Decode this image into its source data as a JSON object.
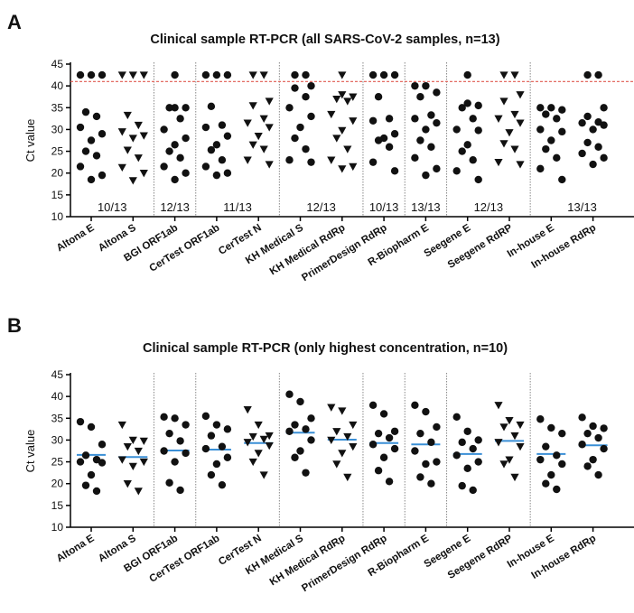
{
  "chart_data": [
    {
      "panel": "A",
      "type": "scatter",
      "title": "Clinical sample RT-PCR (all SARS-CoV-2 samples, n=13)",
      "ylabel": "Ct value",
      "ylim": [
        10,
        45
      ],
      "yticks": [
        10,
        15,
        20,
        25,
        30,
        35,
        40,
        45
      ],
      "cutoff": 41,
      "categories": [
        "Altona E",
        "Altona S",
        "BGI ORF1ab",
        "CerTest ORF1ab",
        "CerTest N",
        "KH Medical S",
        "KH Medical RdRp",
        "PrimerDesign RdRp",
        "R-Biopharm E",
        "Seegene E",
        "Seegene RdRP",
        "In-house E",
        "In-house RdRp"
      ],
      "group_labels": [
        "10/13",
        "12/13",
        "11/13",
        "12/13",
        "10/13",
        "13/13",
        "12/13",
        "13/13"
      ],
      "values": [
        [
          42.5,
          42.5,
          42.5,
          34,
          33,
          30.5,
          29,
          27.5,
          25,
          24,
          21.5,
          19.5,
          18.5
        ],
        [
          42.5,
          42.5,
          42.5,
          33.3,
          31,
          29.5,
          28.6,
          28,
          25.3,
          23.5,
          21.3,
          20,
          18.3
        ],
        [
          42.5,
          35,
          35,
          35,
          32.5,
          30,
          28,
          26.5,
          25,
          23.5,
          21.5,
          20,
          18.5
        ],
        [
          42.5,
          42.5,
          42.5,
          35.3,
          31,
          30.5,
          28.5,
          26.5,
          25.3,
          23,
          21.5,
          20,
          19.5
        ],
        [
          42.5,
          42.5,
          36.5,
          35.5,
          32.5,
          31.5,
          30.5,
          28.5,
          26.5,
          25.5,
          23,
          22
        ],
        [
          42.5,
          42.5,
          40,
          39.5,
          37.5,
          35,
          33,
          30.5,
          28,
          25.5,
          23,
          22.5
        ],
        [
          42.5,
          38,
          37.5,
          37,
          36.5,
          33.5,
          32,
          29.8,
          28,
          25.5,
          23,
          21.5,
          21
        ],
        [
          42.5,
          42.5,
          42.5,
          37.5,
          32.5,
          32,
          29,
          28,
          27.5,
          26,
          22.5,
          20.5
        ],
        [
          40,
          40,
          38.5,
          37.5,
          33.3,
          32.5,
          31.5,
          30,
          27.5,
          26,
          23.5,
          21,
          19.5
        ],
        [
          42.5,
          36,
          35.5,
          35,
          32.5,
          30,
          29.8,
          26.5,
          25,
          23,
          20.5,
          18.5
        ],
        [
          42.5,
          42.5,
          38,
          36.5,
          33.5,
          32.5,
          31.5,
          29.3,
          26.8,
          25.5,
          22.5,
          22
        ],
        [
          35,
          35,
          34.5,
          33.5,
          32.5,
          30,
          29.5,
          27.5,
          25.5,
          23.5,
          21,
          18.5
        ],
        [
          42.5,
          42.5,
          35,
          33,
          31.7,
          31.5,
          31,
          30,
          27,
          26,
          24.5,
          23.5,
          22
        ]
      ]
    },
    {
      "panel": "B",
      "type": "scatter",
      "title": "Clinical sample RT-PCR (only highest concentration, n=10)",
      "ylabel": "Ct value",
      "ylim": [
        10,
        45
      ],
      "yticks": [
        10,
        15,
        20,
        25,
        30,
        35,
        40,
        45
      ],
      "categories": [
        "Altona E",
        "Altona S",
        "BGI ORF1ab",
        "CerTest ORF1ab",
        "CerTest N",
        "KH Medical S",
        "KH Medical RdRp",
        "PrimerDesign RdRp",
        "R-Biopharm E",
        "Seegene E",
        "Seegene RdRP",
        "In-house E",
        "In-house RdRp"
      ],
      "means": [
        26.6,
        26.1,
        27.6,
        27.8,
        29.3,
        31.7,
        30.1,
        29.3,
        29.0,
        26.8,
        29.8,
        26.8,
        28.8
      ],
      "values": [
        [
          34.2,
          33,
          29,
          26.5,
          25.5,
          25,
          24.8,
          22,
          19.6,
          18.3
        ],
        [
          33.5,
          30,
          29.8,
          28.5,
          27.5,
          25.5,
          25,
          24,
          20,
          18.3
        ],
        [
          35.3,
          35,
          33.5,
          31.5,
          29.8,
          27.5,
          27,
          25,
          20.2,
          18.5
        ],
        [
          35.5,
          33.5,
          32.5,
          31,
          28.5,
          28,
          26,
          24.5,
          22,
          19.7
        ],
        [
          37,
          33.5,
          31,
          30.8,
          30.2,
          29.5,
          28.7,
          27,
          25,
          22
        ],
        [
          40.5,
          38.8,
          35,
          33.5,
          32.5,
          32,
          30,
          27.5,
          26,
          22.5
        ],
        [
          37.5,
          36.7,
          33.5,
          32,
          30.8,
          30,
          28.5,
          27,
          24.5,
          21.5
        ],
        [
          38,
          36,
          32,
          31.5,
          30.5,
          29,
          28,
          26,
          23,
          20.5
        ],
        [
          38,
          36.5,
          33,
          31.5,
          29.5,
          27.5,
          25,
          24.5,
          21.5,
          20
        ],
        [
          35.3,
          32,
          30,
          29.5,
          28,
          26.5,
          25,
          23.5,
          19.5,
          18.5
        ],
        [
          38,
          34.5,
          33.5,
          33,
          31,
          29.5,
          28.5,
          25.5,
          24.5,
          21.5
        ],
        [
          34.8,
          32.8,
          31.5,
          28.5,
          26.5,
          25.5,
          24.5,
          22,
          20,
          18.7
        ],
        [
          35.2,
          33.2,
          32.7,
          31.5,
          30.5,
          29,
          28,
          25.5,
          24,
          22
        ]
      ]
    }
  ],
  "markers": [
    "circle",
    "triangle",
    "circle",
    "circle",
    "triangle",
    "circle",
    "triangle",
    "circle",
    "circle",
    "circle",
    "triangle",
    "circle",
    "circle"
  ],
  "colors": {
    "marker": "#111111",
    "mean_line": "#3a8fd6",
    "cutoff_line": "#e05a50",
    "separator": "#888888",
    "axis": "#000000"
  }
}
